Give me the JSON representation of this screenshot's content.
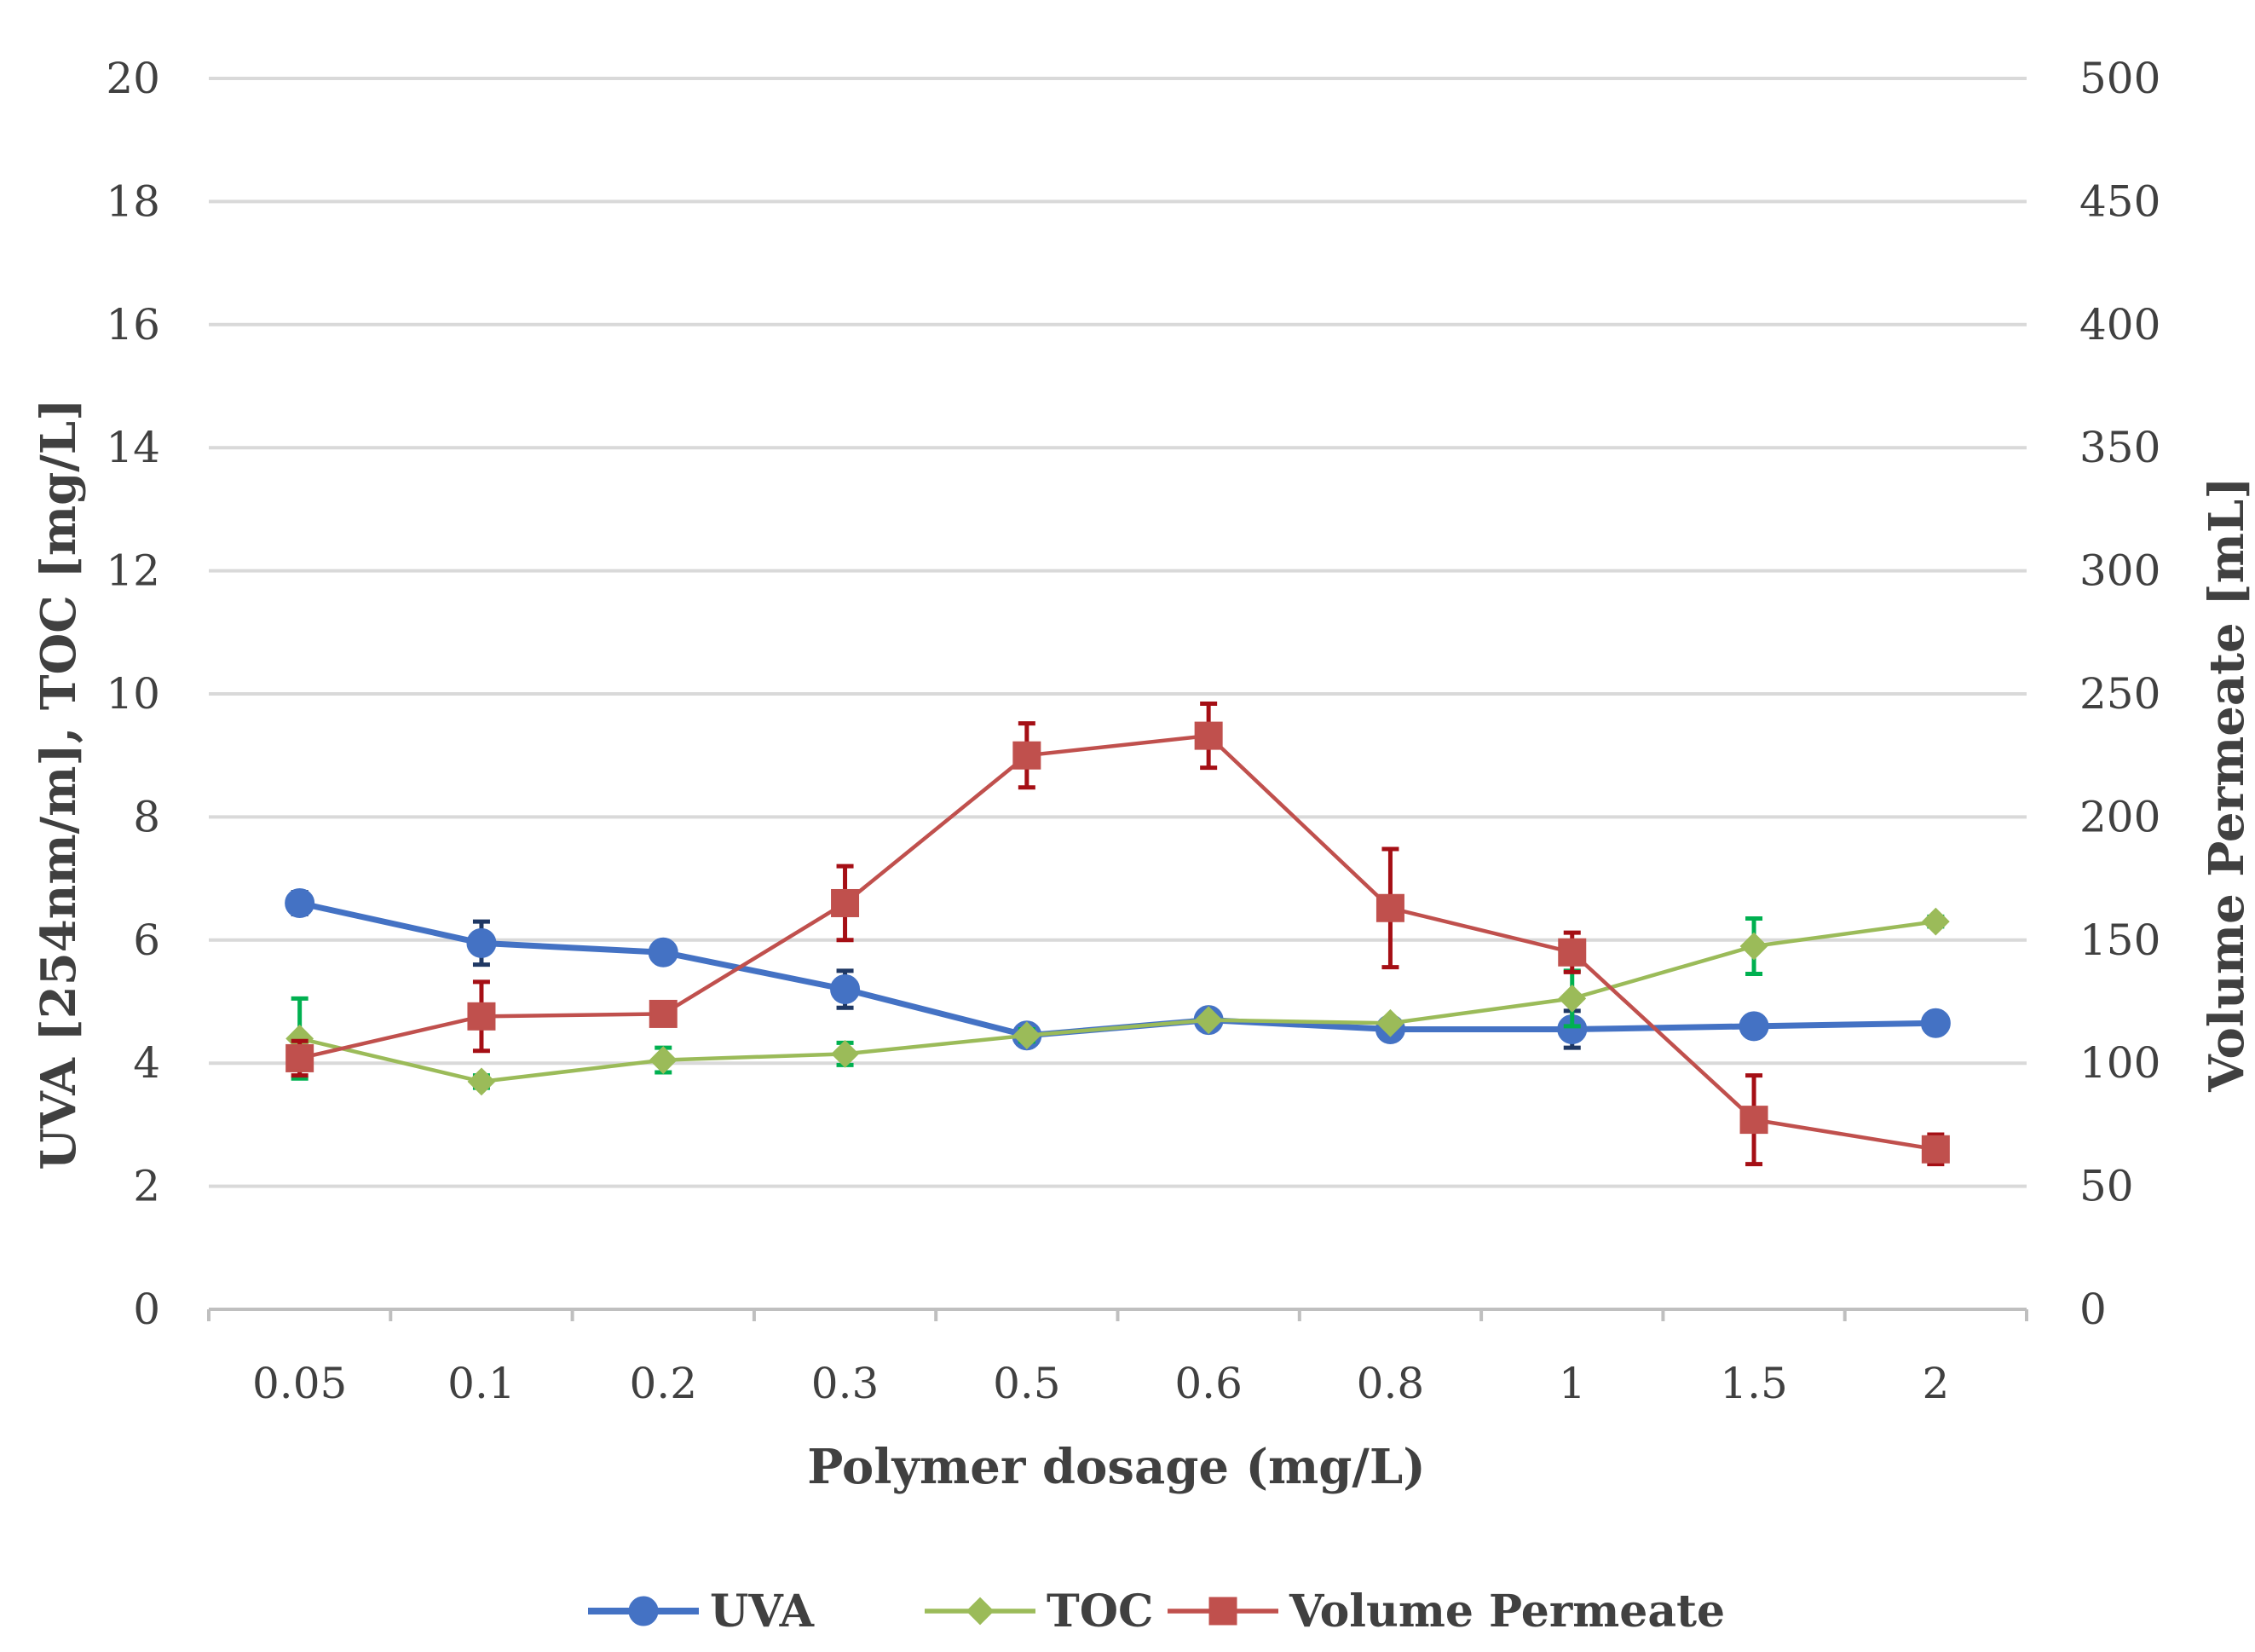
{
  "chart_data": {
    "type": "line",
    "title": "",
    "xlabel": "Polymer dosage (mg/L)",
    "ylabel_left": "UVA [254nm/m], TOC [mg/L]",
    "ylabel_right": "Volume Permeate [mL]",
    "categories": [
      "0.05",
      "0.1",
      "0.2",
      "0.3",
      "0.5",
      "0.6",
      "0.8",
      "1",
      "1.5",
      "2"
    ],
    "ylim_left": [
      0,
      20
    ],
    "ylim_right": [
      0,
      500
    ],
    "yticks_left": [
      "0",
      "2",
      "4",
      "6",
      "8",
      "10",
      "12",
      "14",
      "16",
      "18",
      "20"
    ],
    "yticks_right": [
      "0",
      "50",
      "100",
      "150",
      "200",
      "250",
      "300",
      "350",
      "400",
      "450",
      "500"
    ],
    "grid": true,
    "legend_position": "bottom",
    "series": [
      {
        "name": "UVA",
        "axis": "left",
        "color": "#4472c4",
        "errorbar_color": "#1f3864",
        "marker": "circle",
        "values": [
          6.6,
          5.95,
          5.8,
          5.2,
          4.45,
          4.7,
          4.55,
          4.55,
          4.6,
          4.65
        ],
        "errors": [
          0.18,
          0.35,
          0.05,
          0.3,
          0.08,
          0.05,
          0.06,
          0.3,
          0.05,
          0.05
        ]
      },
      {
        "name": "TOC",
        "axis": "left",
        "color": "#9bbb59",
        "errorbar_color": "#00b050",
        "marker": "diamond",
        "values": [
          4.4,
          3.7,
          4.05,
          4.15,
          4.45,
          4.7,
          4.65,
          5.05,
          5.9,
          6.3
        ],
        "errors": [
          0.65,
          0.1,
          0.2,
          0.18,
          0.1,
          0.05,
          0.05,
          0.45,
          0.45,
          0.08
        ]
      },
      {
        "name": "Volume Permeate",
        "axis": "right",
        "color": "#c0504d",
        "errorbar_color": "#a50f15",
        "marker": "square",
        "values": [
          102,
          119,
          120,
          165,
          225,
          233,
          163,
          145,
          77,
          65
        ],
        "errors": [
          7,
          14,
          2,
          15,
          13,
          13,
          24,
          8,
          18,
          6
        ]
      }
    ]
  }
}
